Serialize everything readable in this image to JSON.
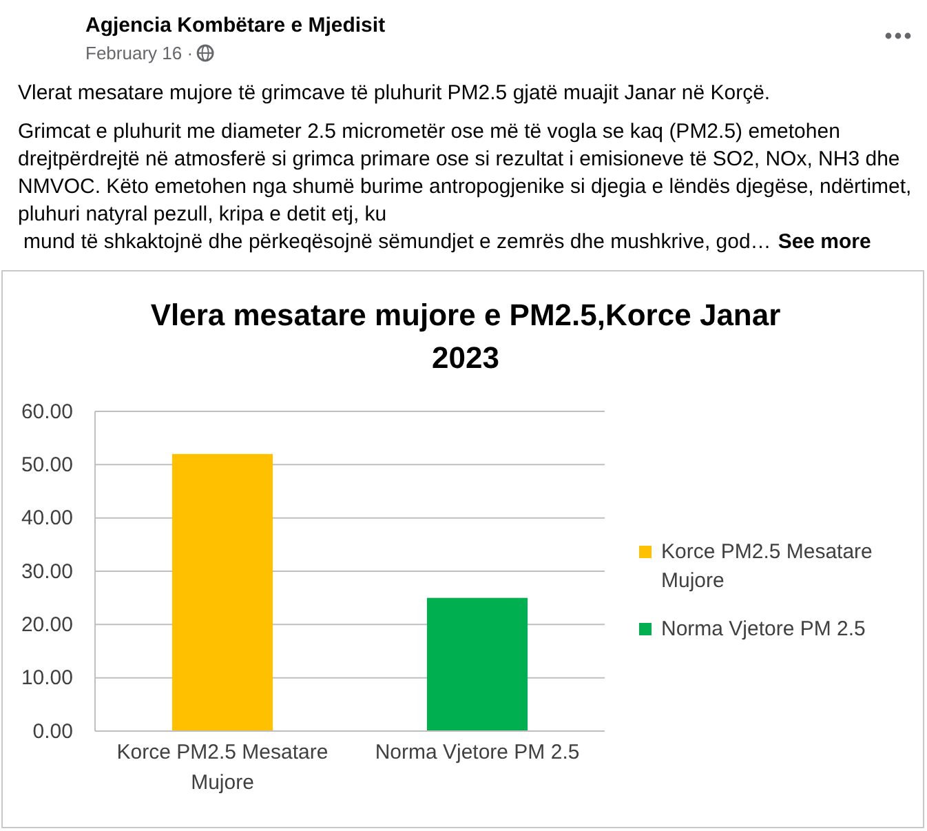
{
  "chart_data": {
    "type": "bar",
    "title": "Vlera mesatare mujore e PM2.5,Korce Janar 2023",
    "categories": [
      "Korce PM2.5 Mesatare Mujore",
      "Norma Vjetore PM 2.5"
    ],
    "series": [
      {
        "name": "Korce PM2.5 Mesatare Mujore",
        "color": "#ffc000",
        "values": [
          52,
          null
        ]
      },
      {
        "name": "Norma Vjetore PM 2.5",
        "color": "#00b050",
        "values": [
          null,
          25
        ]
      }
    ],
    "ylim": [
      0,
      60
    ],
    "yticks": [
      {
        "value": 0,
        "label": "0.00"
      },
      {
        "value": 10,
        "label": "10.00"
      },
      {
        "value": 20,
        "label": "20.00"
      },
      {
        "value": 30,
        "label": "30.00"
      },
      {
        "value": 40,
        "label": "40.00"
      },
      {
        "value": 50,
        "label": "50.00"
      },
      {
        "value": 60,
        "label": "60.00"
      }
    ],
    "grid": "y",
    "legend": "right",
    "annotations": [
      "Agjencia Kombëtare e Mjedisit",
      "February 16 ·",
      "Vlerat mesatare mujore të grimcave të pluhurit PM2.5 gjatë muajit Janar në Korçë.",
      "Grimcat e pluhurit me diameter 2.5 micrometër ose më të vogla se kaq (PM2.5)  emetohen",
      "drejtpërdrejtë në atmosferë si grimca primare ose si rezultat i emisioneve të SO2, NOx, NH3 dhe",
      "NMVOC. Këto emetohen nga shumë burime antropogjenike si djegia e lëndës djegëse, ndërtimet,",
      "pluhuri natyral pezull, kripa e detit etj, ku",
      "mund të shkaktojnë dhe përkeqësojnë sëmundjet e zemrës dhe mushkrive, god…",
      "See more"
    ]
  }
}
